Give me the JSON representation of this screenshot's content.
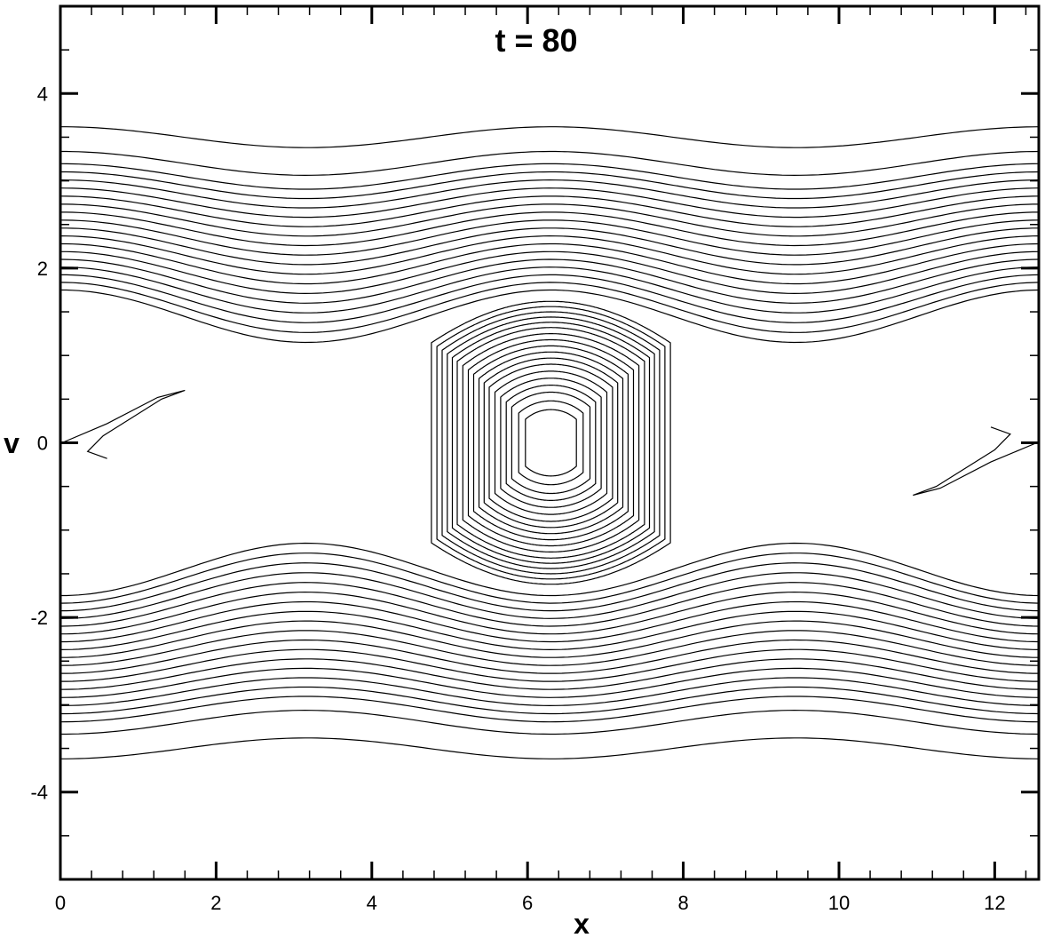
{
  "chart_data": {
    "type": "contour",
    "title": "t = 80",
    "xlabel": "x",
    "ylabel": "v",
    "xlim": [
      0,
      12.566
    ],
    "ylim": [
      -5,
      5
    ],
    "x_ticks": [
      0,
      2,
      4,
      6,
      8,
      10,
      12
    ],
    "x_tick_labels": [
      "0",
      "2",
      "4",
      "6",
      "8",
      "10",
      "12"
    ],
    "y_ticks": [
      -4,
      -2,
      0,
      2,
      4
    ],
    "y_tick_labels": [
      "-4",
      "-2",
      "0",
      "2",
      "4"
    ],
    "grid": false,
    "line_color": "#000000",
    "vortex_center": {
      "x": 6.3,
      "v": 0.0
    },
    "separatrix_half_width_v": 1.65,
    "open_contours_upper_v": [
      1.45,
      1.55,
      1.65,
      1.75,
      1.85,
      1.95,
      2.05,
      2.15,
      2.25,
      2.35,
      2.45,
      2.55,
      2.65,
      2.75,
      2.85,
      2.95,
      3.05,
      3.2,
      3.5
    ],
    "open_contours_lower_v": [
      -1.45,
      -1.55,
      -1.65,
      -1.75,
      -1.85,
      -1.95,
      -2.05,
      -2.15,
      -2.25,
      -2.35,
      -2.45,
      -2.55,
      -2.65,
      -2.75,
      -2.85,
      -2.95,
      -3.05,
      -3.2,
      -3.5
    ],
    "trapped_orbit_half_heights_v": [
      0.38,
      0.48,
      0.58,
      0.66,
      0.74,
      0.82,
      0.9,
      0.97,
      1.04,
      1.11,
      1.18,
      1.25,
      1.32,
      1.38,
      1.44,
      1.5,
      1.56,
      1.62
    ]
  }
}
